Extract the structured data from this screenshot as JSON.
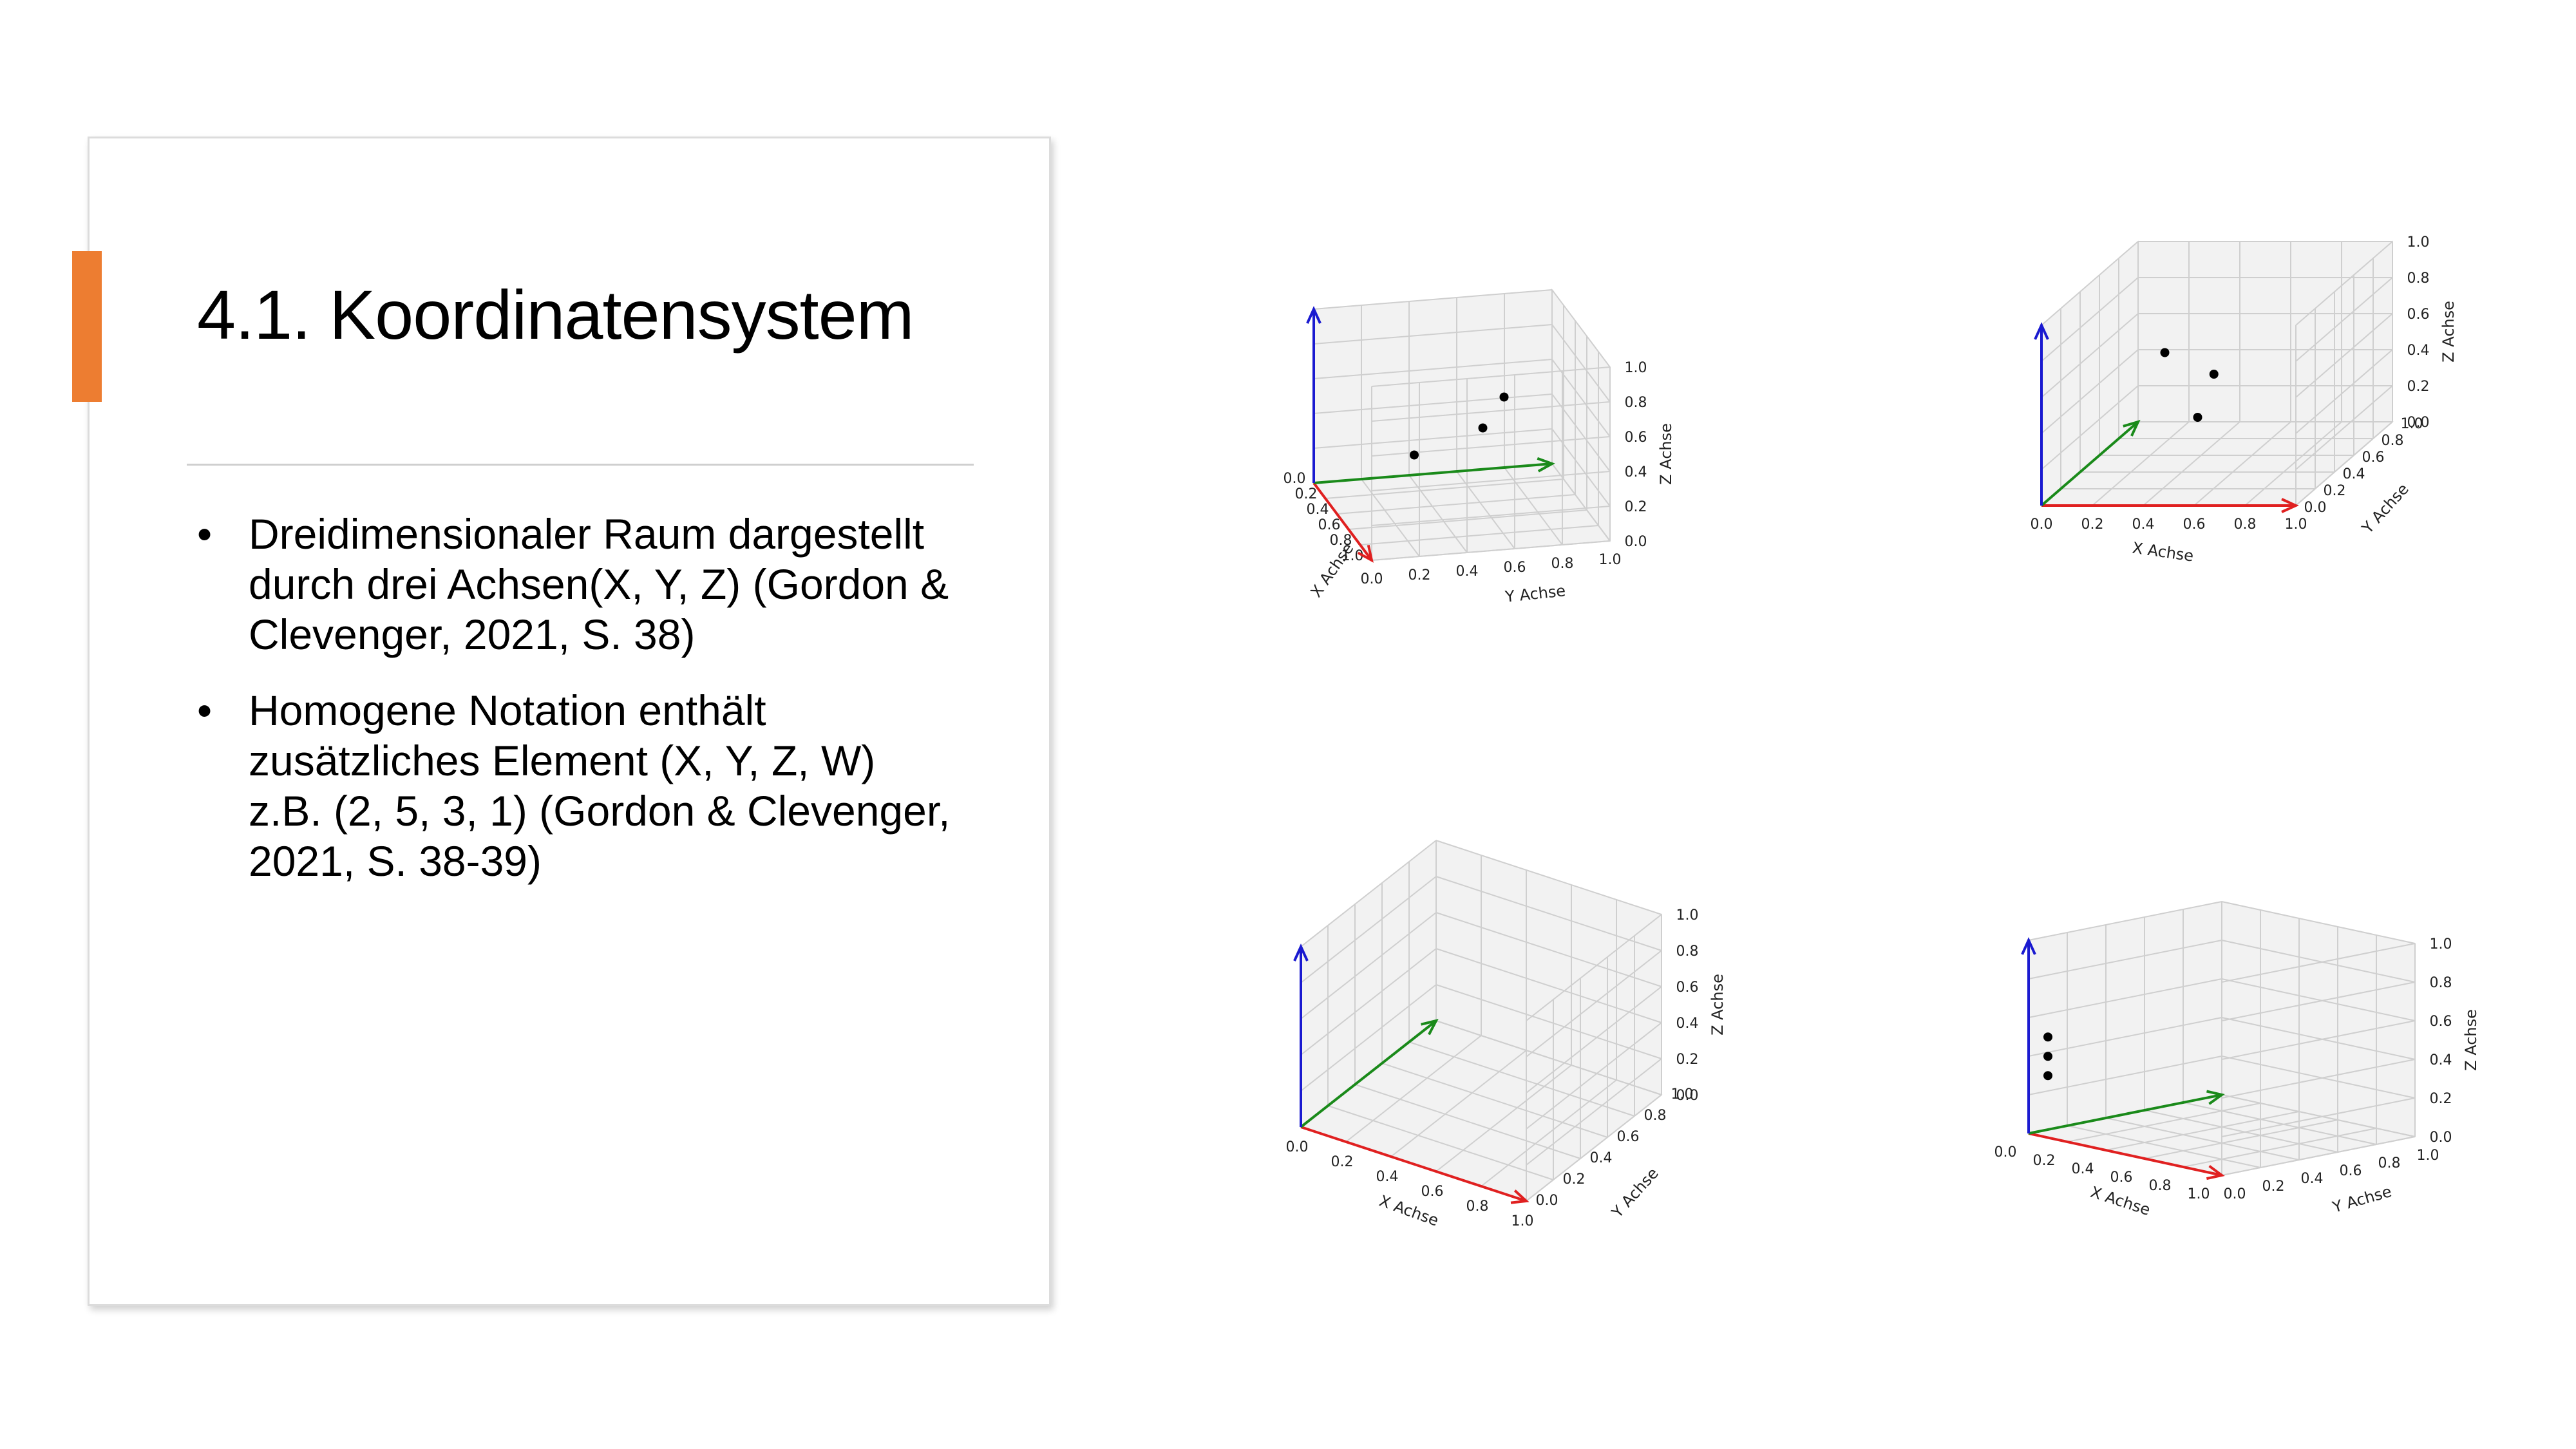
{
  "slide": {
    "title": "4.1. Koordinatensystem",
    "accent_color": "#ed7d31",
    "bullets": [
      "Dreidimensionaler Raum dargestellt durch drei Achsen(X, Y, Z) (Gordon & Clevenger, 2021, S. 38)",
      "Homogene Notation enthält zusätzliches Element (X, Y, Z, W) z.B. (2, 5, 3, 1) (Gordon & Clevenger, 2021, S. 38-39)"
    ],
    "bullet_symbol": "•"
  },
  "chart_data": [
    {
      "type": "scatter",
      "projection": "3d",
      "xlabel": "X Achse",
      "ylabel": "Y Achse",
      "zlabel": "Z Achse",
      "xlim": [
        0,
        1
      ],
      "ylim": [
        0,
        1
      ],
      "zlim": [
        0,
        1
      ],
      "ticks": [
        "0.0",
        "0.2",
        "0.4",
        "0.6",
        "0.8",
        "1.0"
      ],
      "grid": true,
      "axis_arrow_colors": {
        "x": "#e02020",
        "y": "#1a8a1a",
        "z": "#1a1ad0"
      },
      "points": [
        [
          0.5,
          0.3,
          0.35
        ],
        [
          0.45,
          0.6,
          0.45
        ],
        [
          0.2,
          0.75,
          0.5
        ]
      ]
    },
    {
      "type": "scatter",
      "projection": "3d",
      "xlabel": "X Achse",
      "ylabel": "Y Achse",
      "zlabel": "Z Achse",
      "xlim": [
        0,
        1
      ],
      "ylim": [
        0,
        1
      ],
      "zlim": [
        0,
        1
      ],
      "ticks": [
        "0.0",
        "0.2",
        "0.4",
        "0.6",
        "0.8",
        "1.0"
      ],
      "grid": true,
      "axis_arrow_colors": {
        "x": "#e02020",
        "y": "#1a8a1a",
        "z": "#1a1ad0"
      },
      "points": [
        [
          0.5,
          0.3,
          0.35
        ],
        [
          0.45,
          0.6,
          0.45
        ],
        [
          0.2,
          0.75,
          0.5
        ]
      ]
    },
    {
      "type": "scatter",
      "projection": "3d",
      "xlabel": "X Achse",
      "ylabel": "Y Achse",
      "zlabel": "Z Achse",
      "xlim": [
        0,
        1
      ],
      "ylim": [
        0,
        1
      ],
      "zlim": [
        0,
        1
      ],
      "ticks": [
        "0.0",
        "0.2",
        "0.4",
        "0.6",
        "0.8",
        "1.0"
      ],
      "grid": true,
      "axis_arrow_colors": {
        "x": "#e02020",
        "y": "#1a8a1a",
        "z": "#1a1ad0"
      },
      "points": []
    },
    {
      "type": "scatter",
      "projection": "3d",
      "xlabel": "X Achse",
      "ylabel": "Y Achse",
      "zlabel": "Z Achse",
      "xlim": [
        0,
        1
      ],
      "ylim": [
        0,
        1
      ],
      "zlim": [
        0,
        1
      ],
      "ticks": [
        "0.0",
        "0.2",
        "0.4",
        "0.6",
        "0.8",
        "1.0"
      ],
      "grid": true,
      "axis_arrow_colors": {
        "x": "#e02020",
        "y": "#1a8a1a",
        "z": "#1a1ad0"
      },
      "points": [
        [
          0.05,
          0.05,
          0.3
        ],
        [
          0.05,
          0.05,
          0.4
        ],
        [
          0.05,
          0.05,
          0.5
        ]
      ]
    }
  ]
}
